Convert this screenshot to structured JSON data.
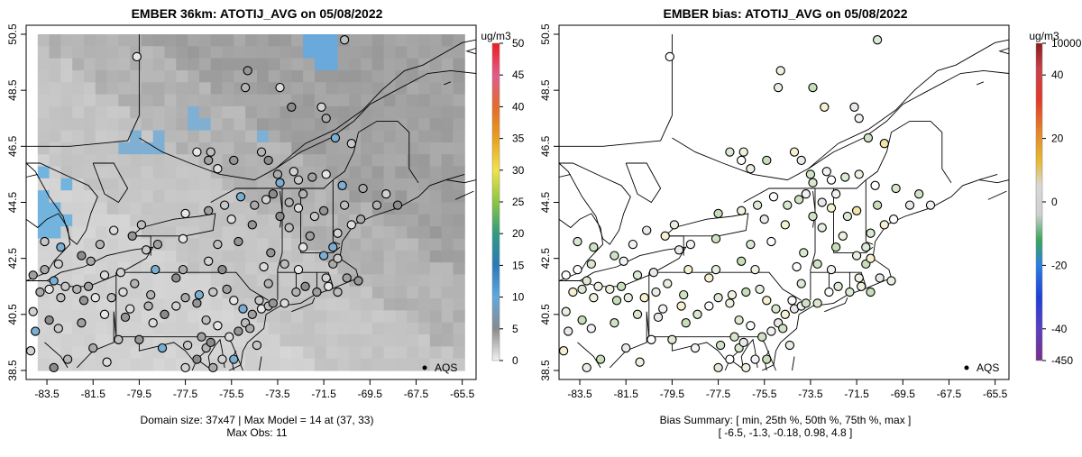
{
  "chart_data": [
    {
      "type": "heatmap",
      "title": "EMBER 36km: ATOTIJ_AVG on 05/08/2022",
      "x_ticks": [
        "-83.5",
        "-81.5",
        "-79.5",
        "-77.5",
        "-75.5",
        "-73.5",
        "-71.5",
        "-69.5",
        "-67.5",
        "-65.5"
      ],
      "y_ticks": [
        "38.5",
        "40.5",
        "42.5",
        "44.5",
        "46.5",
        "48.5",
        "50.5"
      ],
      "xlim": [
        -84.4,
        -64.9
      ],
      "ylim": [
        38.5,
        50.5
      ],
      "colorbar": {
        "unit": "ug/m3",
        "ticks": [
          "0",
          "5",
          "10",
          "15",
          "20",
          "25",
          "30",
          "35",
          "40",
          "45",
          "50"
        ],
        "range": [
          0,
          50
        ]
      },
      "legend": {
        "label": "AQS",
        "position": "bottom-right"
      },
      "caption_line1": "Domain size: 37x47 | Max Model = 14 at (37, 33)",
      "caption_line2": "Max Obs: 11",
      "grid_dims": [
        37,
        47
      ],
      "max_model": 14,
      "max_model_at": [
        37,
        33
      ],
      "max_obs": 11
    },
    {
      "type": "scatter",
      "title": "EMBER bias: ATOTIJ_AVG on 05/08/2022",
      "x_ticks": [
        "-83.5",
        "-81.5",
        "-79.5",
        "-77.5",
        "-75.5",
        "-73.5",
        "-71.5",
        "-69.5",
        "-67.5",
        "-65.5"
      ],
      "y_ticks": [
        "38.5",
        "40.5",
        "42.5",
        "44.5",
        "46.5",
        "48.5",
        "50.5"
      ],
      "xlim": [
        -84.4,
        -64.9
      ],
      "ylim": [
        38.5,
        50.5
      ],
      "colorbar": {
        "unit": "ug/m3",
        "ticks": [
          "10000",
          "40",
          "20",
          "0",
          "-20",
          "-40",
          "-450"
        ]
      },
      "legend": {
        "label": "AQS",
        "position": "bottom-right"
      },
      "caption_line1": "Bias Summary: [ min, 25th %, 50th %, 75th %, max ]",
      "caption_line2": "[ -6.5,   -1.3,   -0.18,   0.98,   4.8 ]",
      "bias_summary": {
        "min": -6.5,
        "p25": -1.3,
        "p50": -0.18,
        "p75": 0.98,
        "max": 4.8
      }
    }
  ]
}
